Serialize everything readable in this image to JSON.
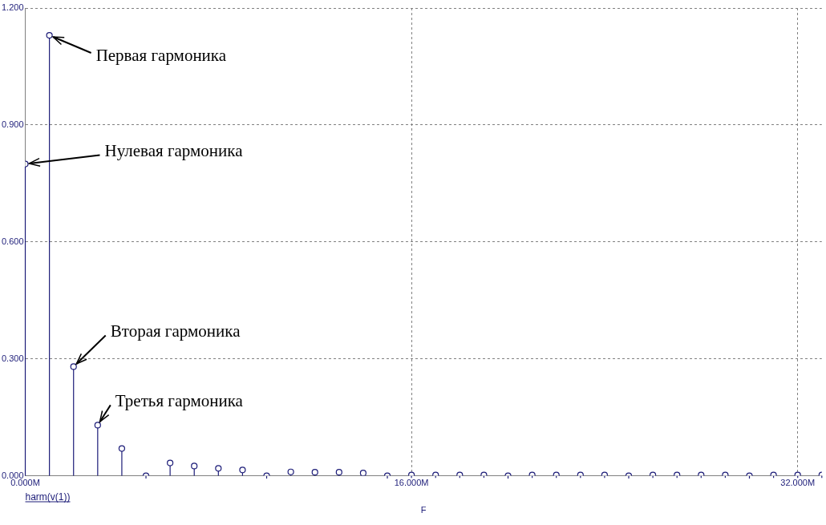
{
  "chart_data": {
    "type": "lollipop",
    "x": [
      0,
      1,
      2,
      3,
      4,
      5,
      6,
      7,
      8,
      9,
      10,
      11,
      12,
      13,
      14,
      15,
      16,
      17,
      18,
      19,
      20,
      21,
      22,
      23,
      24,
      25,
      26,
      27,
      28,
      29,
      30,
      31,
      32,
      33
    ],
    "series": [
      {
        "name": "harm(v(1))",
        "color": "#1c1c78",
        "values": [
          0.8,
          1.13,
          0.28,
          0.13,
          0.07,
          0,
          0.033,
          0.025,
          0.019,
          0.015,
          0,
          0.01,
          0.009,
          0.009,
          0.007,
          0,
          0.002,
          0.002,
          0.002,
          0.002,
          0,
          0.002,
          0.002,
          0.002,
          0.002,
          0,
          0.002,
          0.002,
          0.002,
          0.002,
          0,
          0.002,
          0.002,
          0.002
        ]
      }
    ],
    "xlabel": "F",
    "xlim": [
      0,
      33
    ],
    "xticks": [
      {
        "value": 0,
        "label": "0.000M"
      },
      {
        "value": 16,
        "label": "16.000M"
      },
      {
        "value": 32,
        "label": "32.000M"
      }
    ],
    "ylim": [
      0,
      1.2
    ],
    "yticks": [
      {
        "value": 0,
        "label": "0.000"
      },
      {
        "value": 0.3,
        "label": "0.300"
      },
      {
        "value": 0.6,
        "label": "0.600"
      },
      {
        "value": 0.9,
        "label": "0.900"
      },
      {
        "value": 1.2,
        "label": "1.200"
      }
    ],
    "grid": true,
    "legend": "bottom left",
    "marker": "circle",
    "annotations": [
      {
        "text": "Нулевая гармоника",
        "x": 0,
        "y": 0.8
      },
      {
        "text": "Первая гармоника",
        "x": 1,
        "y": 1.13
      },
      {
        "text": "Вторая гармоника",
        "x": 2,
        "y": 0.28
      },
      {
        "text": "Третья гармоника",
        "x": 3,
        "y": 0.13
      }
    ]
  }
}
